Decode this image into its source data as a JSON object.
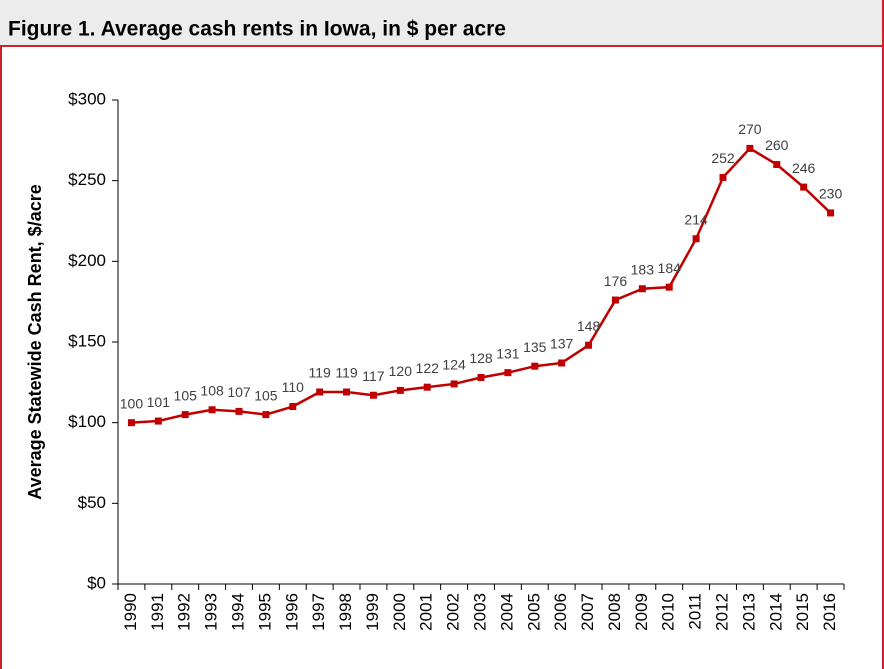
{
  "chart_data": {
    "type": "line",
    "title": "Figure 1. Average cash rents in Iowa, in $ per acre",
    "y_label": "Average Statewide Cash Rent, $/acre",
    "categories": [
      "1990",
      "1991",
      "1992",
      "1993",
      "1994",
      "1995",
      "1996",
      "1997",
      "1998",
      "1999",
      "2000",
      "2001",
      "2002",
      "2003",
      "2004",
      "2005",
      "2006",
      "2007",
      "2008",
      "2009",
      "2010",
      "2011",
      "2012",
      "2013",
      "2014",
      "2015",
      "2016"
    ],
    "series": [
      {
        "name": "Average cash rent",
        "color": "#c00000",
        "values": [
          100,
          101,
          105,
          108,
          107,
          105,
          110,
          119,
          119,
          117,
          120,
          122,
          124,
          128,
          131,
          135,
          137,
          148,
          176,
          183,
          184,
          214,
          252,
          270,
          260,
          246,
          230
        ]
      }
    ],
    "ylim": [
      0,
      300
    ],
    "yticks": [
      {
        "value": 0,
        "label": "$0"
      },
      {
        "value": 50,
        "label": "$50"
      },
      {
        "value": 100,
        "label": "$100"
      },
      {
        "value": 150,
        "label": "$150"
      },
      {
        "value": 200,
        "label": "$200"
      },
      {
        "value": 250,
        "label": "$250"
      },
      {
        "value": 300,
        "label": "$300"
      }
    ],
    "data_labels": true
  }
}
